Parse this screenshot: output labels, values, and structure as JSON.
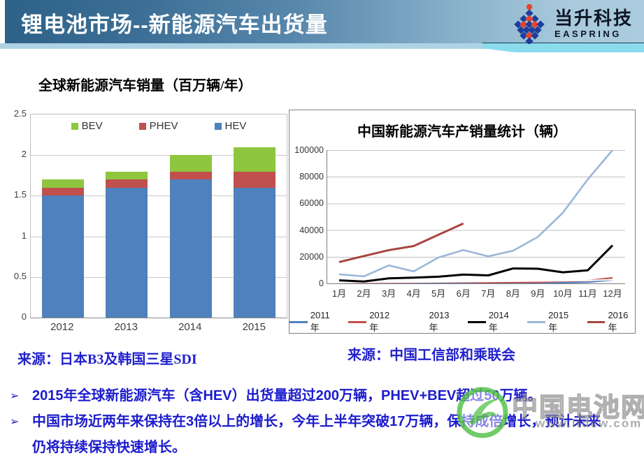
{
  "header": {
    "title": "锂电池市场--新能源汽车出货量",
    "logo_name": "当升科技",
    "logo_sub": "EASPRING"
  },
  "colors": {
    "accent_text_blue": "#1c1ccd",
    "bar_blue": "#4f81bd",
    "bar_red": "#c0504d",
    "bar_green": "#8ec63f",
    "watermark_green": "#58c24e"
  },
  "chart_data": [
    {
      "type": "bar",
      "stacked": true,
      "title": "全球新能源汽车销量（百万辆/年）",
      "categories": [
        "2012",
        "2013",
        "2014",
        "2015"
      ],
      "series": [
        {
          "name": "HEV",
          "color": "#4f81bd",
          "values": [
            1.5,
            1.6,
            1.7,
            1.6
          ]
        },
        {
          "name": "PHEV",
          "color": "#c0504d",
          "values": [
            0.1,
            0.1,
            0.1,
            0.2
          ]
        },
        {
          "name": "BEV",
          "color": "#8ec63f",
          "values": [
            0.1,
            0.1,
            0.2,
            0.3
          ]
        }
      ],
      "legend_order": [
        "BEV",
        "PHEV",
        "HEV"
      ],
      "ylim": [
        0,
        2.5
      ],
      "yticks": [
        2.5,
        2,
        1.5,
        1,
        0.5,
        0
      ],
      "grid": true,
      "legend_position": "top",
      "source": "来源：日本B3及韩国三星SDI"
    },
    {
      "type": "line",
      "title": "中国新能源汽车产销量统计（辆）",
      "x": [
        "1月",
        "2月",
        "3月",
        "4月",
        "5月",
        "6月",
        "7月",
        "8月",
        "9月",
        "10月",
        "11月",
        "12月"
      ],
      "ylim": [
        0,
        100000
      ],
      "yticks": [
        100000,
        80000,
        60000,
        40000,
        20000,
        0
      ],
      "grid": true,
      "legend_position": "bottom",
      "series": [
        {
          "name": "2011年",
          "color": "#4f81bd",
          "width": 2.2,
          "values": [
            300,
            250,
            300,
            350,
            350,
            400,
            400,
            450,
            500,
            600,
            900,
            2600
          ]
        },
        {
          "name": "2012年",
          "color": "#c0504d",
          "width": 2.2,
          "values": [
            400,
            500,
            600,
            700,
            900,
            1000,
            600,
            700,
            900,
            1600,
            2100,
            4200
          ]
        },
        {
          "name": "2013年",
          "color": "#ffffff",
          "width": 2,
          "values": [
            600,
            800,
            900,
            1000,
            1100,
            1300,
            1400,
            1600,
            1800,
            2000,
            2200,
            2800
          ]
        },
        {
          "name": "2014年",
          "color": "#000000",
          "width": 3,
          "values": [
            2300,
            1400,
            3800,
            4300,
            5000,
            6600,
            6000,
            11200,
            11000,
            8300,
            9800,
            28500
          ]
        },
        {
          "name": "2015年",
          "color": "#9ab7d8",
          "width": 2.6,
          "values": [
            6800,
            5300,
            13500,
            9000,
            19500,
            25000,
            20300,
            24500,
            35000,
            53000,
            78000,
            100000
          ]
        },
        {
          "name": "2016年",
          "color": "#a8453f",
          "width": 3,
          "values": [
            16000,
            20500,
            25000,
            28000,
            36500,
            45000
          ]
        }
      ],
      "source": "来源：中国工信部和乘联会"
    }
  ],
  "bullet_marker": "➢",
  "bullets": [
    "2015年全球新能源汽车（含HEV）出货量超过200万辆，PHEV+BEV超过50万辆。",
    "中国市场近两年来保持在3倍以上的增长，今年上半年突破17万辆，保持成倍增长，预计未来仍将持续保持快速增长。"
  ],
  "watermark": {
    "text": "中国电池网",
    "url": "www.itdcw.com"
  }
}
